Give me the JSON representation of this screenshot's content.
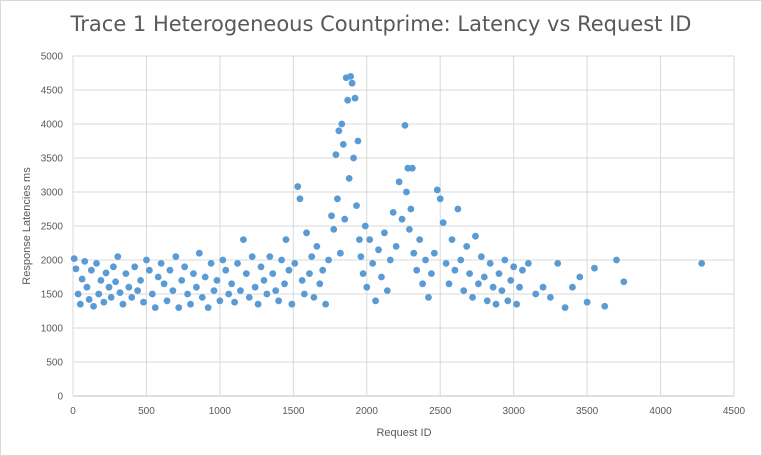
{
  "chart_data": {
    "type": "scatter",
    "title": "Trace 1 Heterogeneous Countprime: Latency vs Request ID",
    "xlabel": "Request ID",
    "ylabel": "Response Latencies ms",
    "xlim": [
      0,
      4500
    ],
    "ylim": [
      0,
      5000
    ],
    "xticks": [
      0,
      500,
      1000,
      1500,
      2000,
      2500,
      3000,
      3500,
      4000,
      4500
    ],
    "yticks": [
      0,
      500,
      1000,
      1500,
      2000,
      2500,
      3000,
      3500,
      4000,
      4500,
      5000
    ],
    "grid": true,
    "legend": "none",
    "marker_color": "#5B9BD5",
    "series": [
      {
        "points": [
          [
            8,
            2020
          ],
          [
            20,
            1870
          ],
          [
            35,
            1500
          ],
          [
            50,
            1350
          ],
          [
            62,
            1720
          ],
          [
            80,
            1980
          ],
          [
            95,
            1600
          ],
          [
            110,
            1420
          ],
          [
            125,
            1850
          ],
          [
            140,
            1320
          ],
          [
            160,
            1950
          ],
          [
            175,
            1500
          ],
          [
            190,
            1700
          ],
          [
            210,
            1380
          ],
          [
            225,
            1810
          ],
          [
            245,
            1600
          ],
          [
            260,
            1450
          ],
          [
            275,
            1900
          ],
          [
            290,
            1680
          ],
          [
            305,
            2050
          ],
          [
            320,
            1520
          ],
          [
            340,
            1350
          ],
          [
            360,
            1800
          ],
          [
            380,
            1600
          ],
          [
            400,
            1450
          ],
          [
            420,
            1900
          ],
          [
            440,
            1550
          ],
          [
            460,
            1700
          ],
          [
            480,
            1380
          ],
          [
            500,
            2000
          ],
          [
            520,
            1850
          ],
          [
            540,
            1500
          ],
          [
            560,
            1300
          ],
          [
            580,
            1750
          ],
          [
            600,
            1950
          ],
          [
            620,
            1650
          ],
          [
            640,
            1400
          ],
          [
            660,
            1850
          ],
          [
            680,
            1550
          ],
          [
            700,
            2050
          ],
          [
            720,
            1300
          ],
          [
            740,
            1700
          ],
          [
            760,
            1900
          ],
          [
            780,
            1500
          ],
          [
            800,
            1350
          ],
          [
            820,
            1800
          ],
          [
            840,
            1600
          ],
          [
            860,
            2100
          ],
          [
            880,
            1450
          ],
          [
            900,
            1750
          ],
          [
            920,
            1300
          ],
          [
            940,
            1950
          ],
          [
            960,
            1550
          ],
          [
            980,
            1700
          ],
          [
            1000,
            1400
          ],
          [
            1020,
            2000
          ],
          [
            1040,
            1850
          ],
          [
            1060,
            1500
          ],
          [
            1080,
            1650
          ],
          [
            1100,
            1380
          ],
          [
            1120,
            1950
          ],
          [
            1140,
            1550
          ],
          [
            1160,
            2300
          ],
          [
            1180,
            1800
          ],
          [
            1200,
            1450
          ],
          [
            1220,
            2050
          ],
          [
            1240,
            1600
          ],
          [
            1260,
            1350
          ],
          [
            1280,
            1900
          ],
          [
            1300,
            1700
          ],
          [
            1320,
            1500
          ],
          [
            1340,
            2050
          ],
          [
            1360,
            1800
          ],
          [
            1380,
            1550
          ],
          [
            1400,
            1400
          ],
          [
            1420,
            2000
          ],
          [
            1440,
            1650
          ],
          [
            1450,
            2300
          ],
          [
            1470,
            1850
          ],
          [
            1490,
            1350
          ],
          [
            1510,
            1950
          ],
          [
            1530,
            3080
          ],
          [
            1545,
            2900
          ],
          [
            1560,
            1700
          ],
          [
            1575,
            1500
          ],
          [
            1590,
            2400
          ],
          [
            1610,
            1800
          ],
          [
            1625,
            2050
          ],
          [
            1640,
            1450
          ],
          [
            1660,
            2200
          ],
          [
            1680,
            1650
          ],
          [
            1700,
            1850
          ],
          [
            1720,
            1350
          ],
          [
            1740,
            2000
          ],
          [
            1760,
            2650
          ],
          [
            1775,
            2450
          ],
          [
            1790,
            3550
          ],
          [
            1800,
            2900
          ],
          [
            1810,
            3900
          ],
          [
            1820,
            2100
          ],
          [
            1830,
            4000
          ],
          [
            1840,
            3700
          ],
          [
            1850,
            2600
          ],
          [
            1860,
            4680
          ],
          [
            1870,
            4350
          ],
          [
            1880,
            3200
          ],
          [
            1890,
            4700
          ],
          [
            1900,
            4600
          ],
          [
            1910,
            3500
          ],
          [
            1920,
            4380
          ],
          [
            1930,
            2800
          ],
          [
            1940,
            3750
          ],
          [
            1950,
            2300
          ],
          [
            1960,
            2050
          ],
          [
            1975,
            1800
          ],
          [
            1990,
            2500
          ],
          [
            2000,
            1600
          ],
          [
            2020,
            2300
          ],
          [
            2040,
            1950
          ],
          [
            2060,
            1400
          ],
          [
            2080,
            2150
          ],
          [
            2100,
            1750
          ],
          [
            2120,
            2400
          ],
          [
            2140,
            1550
          ],
          [
            2160,
            2000
          ],
          [
            2180,
            2700
          ],
          [
            2200,
            2200
          ],
          [
            2220,
            3150
          ],
          [
            2240,
            2600
          ],
          [
            2260,
            3980
          ],
          [
            2270,
            3000
          ],
          [
            2280,
            3350
          ],
          [
            2290,
            2450
          ],
          [
            2300,
            2750
          ],
          [
            2310,
            3350
          ],
          [
            2320,
            2100
          ],
          [
            2340,
            1850
          ],
          [
            2360,
            2300
          ],
          [
            2380,
            1650
          ],
          [
            2400,
            2000
          ],
          [
            2420,
            1450
          ],
          [
            2440,
            1800
          ],
          [
            2460,
            2100
          ],
          [
            2480,
            3030
          ],
          [
            2500,
            2900
          ],
          [
            2520,
            2550
          ],
          [
            2540,
            1950
          ],
          [
            2560,
            1650
          ],
          [
            2580,
            2300
          ],
          [
            2600,
            1850
          ],
          [
            2620,
            2750
          ],
          [
            2640,
            2000
          ],
          [
            2660,
            1550
          ],
          [
            2680,
            2200
          ],
          [
            2700,
            1800
          ],
          [
            2720,
            1450
          ],
          [
            2740,
            2350
          ],
          [
            2760,
            1650
          ],
          [
            2780,
            2050
          ],
          [
            2800,
            1750
          ],
          [
            2820,
            1400
          ],
          [
            2840,
            1950
          ],
          [
            2860,
            1600
          ],
          [
            2880,
            1350
          ],
          [
            2900,
            1800
          ],
          [
            2920,
            1550
          ],
          [
            2940,
            2000
          ],
          [
            2960,
            1400
          ],
          [
            2980,
            1700
          ],
          [
            3000,
            1900
          ],
          [
            3020,
            1350
          ],
          [
            3040,
            1600
          ],
          [
            3060,
            1850
          ],
          [
            3100,
            1950
          ],
          [
            3150,
            1500
          ],
          [
            3200,
            1600
          ],
          [
            3250,
            1450
          ],
          [
            3300,
            1950
          ],
          [
            3350,
            1300
          ],
          [
            3400,
            1600
          ],
          [
            3450,
            1750
          ],
          [
            3500,
            1380
          ],
          [
            3550,
            1880
          ],
          [
            3620,
            1320
          ],
          [
            3700,
            2000
          ],
          [
            3750,
            1680
          ],
          [
            4280,
            1950
          ]
        ]
      }
    ]
  }
}
